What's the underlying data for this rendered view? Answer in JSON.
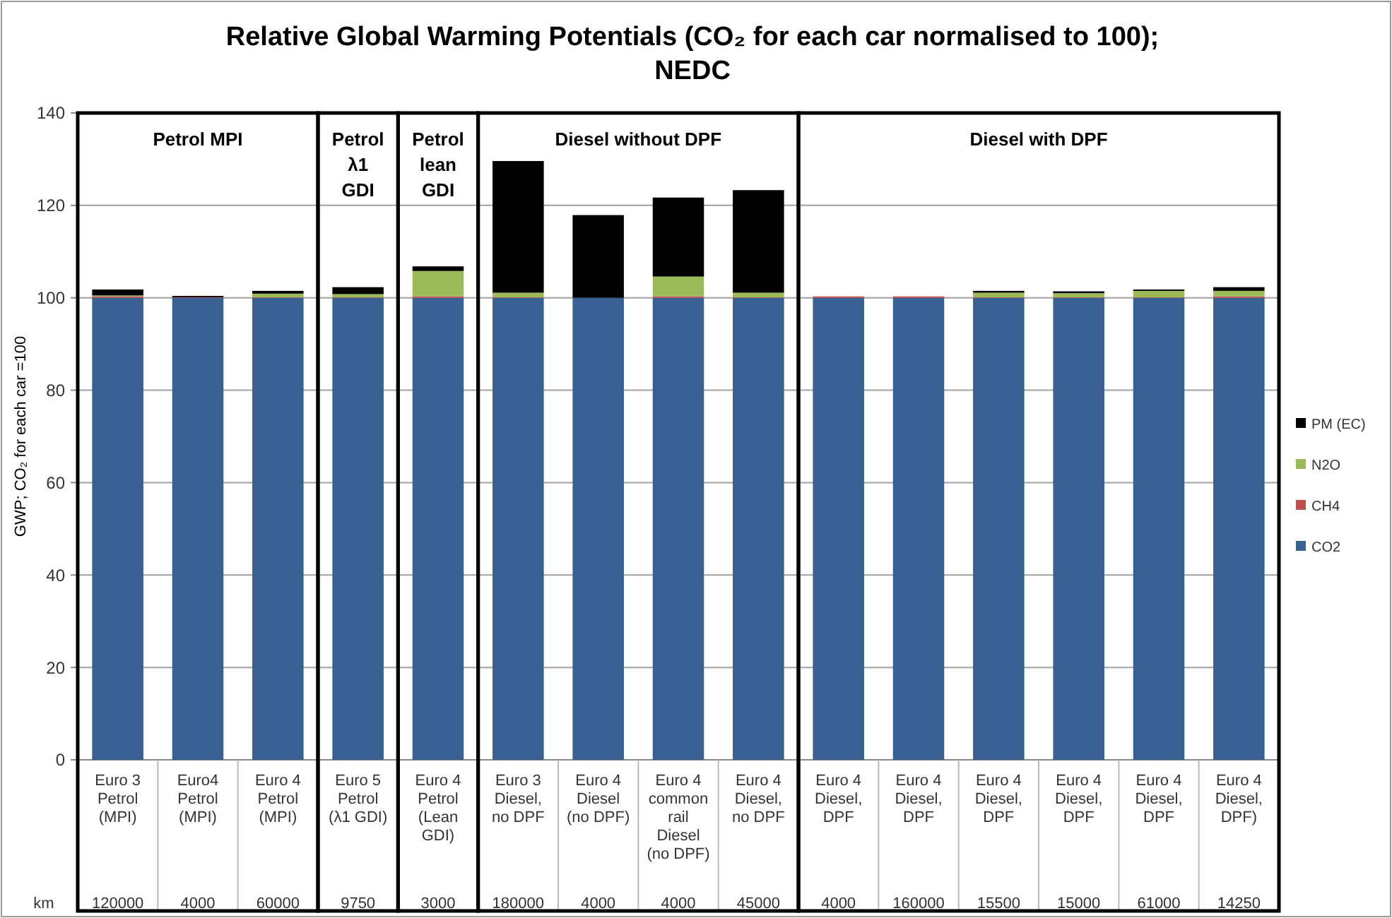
{
  "chart_data": [
    {
      "type": "bar",
      "title": "Relative Global Warming Potentials (CO₂ for each car normalised to 100);\nNEDC",
      "subtitle": "Petrol MPI",
      "ylabel": "GWP; CO₂ for each car =100",
      "categories": [
        "Euro 3 Petrol (MPI)",
        "Euro4 Petrol (MPI)",
        "Euro 4 Petrol (MPI)"
      ],
      "stacked": true,
      "series": [
        {
          "color": "#386092",
          "values": [
            100,
            100,
            100
          ]
        },
        {
          "color": "#c0504d",
          "values": [
            0.3,
            0.1,
            0.1
          ]
        },
        {
          "color": "#9bbb59",
          "values": [
            0.2,
            0,
            0.8
          ]
        },
        {
          "color": "#000000",
          "values": [
            1.3,
            0.3,
            0.6
          ]
        }
      ],
      "ylim": [
        0,
        140
      ],
      "yticks": [
        0,
        20,
        40,
        60,
        80,
        100,
        120,
        140
      ],
      "grid": "y",
      "annotations": [
        "km",
        "120000",
        "4000",
        "60000"
      ]
    },
    {
      "type": "bar",
      "subtitle": "Petrol\nλ1\nGDI",
      "categories": [
        "Euro 5 Petrol (λ1 GDI)"
      ],
      "stacked": true,
      "series": [
        {
          "color": "#386092",
          "values": [
            100
          ]
        },
        {
          "color": "#c0504d",
          "values": [
            0.1
          ]
        },
        {
          "color": "#9bbb59",
          "values": [
            0.7
          ]
        },
        {
          "color": "#000000",
          "values": [
            1.5
          ]
        }
      ],
      "ylim": [
        0,
        140
      ],
      "yticks": [
        0,
        20,
        40,
        60,
        80,
        100,
        120,
        140
      ],
      "grid": "y",
      "tick_labels": "x",
      "annotations": [
        "9750"
      ]
    },
    {
      "type": "bar",
      "subtitle": "Petrol\nlean\nGDI",
      "categories": [
        "Euro 4 Petrol (Lean GDI)"
      ],
      "stacked": true,
      "series": [
        {
          "color": "#386092",
          "values": [
            100
          ]
        },
        {
          "color": "#c0504d",
          "values": [
            0.3
          ]
        },
        {
          "color": "#9bbb59",
          "values": [
            5.5
          ]
        },
        {
          "color": "#000000",
          "values": [
            1.0
          ]
        }
      ],
      "ylim": [
        0,
        140
      ],
      "yticks": [
        0,
        20,
        40,
        60,
        80,
        100,
        120,
        140
      ],
      "grid": "y",
      "tick_labels": "x",
      "annotations": [
        "3000"
      ]
    },
    {
      "type": "bar",
      "subtitle": "Diesel without DPF",
      "categories": [
        "Euro 3 Diesel, no DPF",
        "Euro 4 Diesel (no DPF)",
        "Euro 4 common rail Diesel (no DPF)",
        "Euro 4 Diesel, no DPF"
      ],
      "stacked": true,
      "series": [
        {
          "color": "#386092",
          "values": [
            100,
            100,
            100,
            100
          ]
        },
        {
          "color": "#c0504d",
          "values": [
            0.1,
            0,
            0.3,
            0.1
          ]
        },
        {
          "color": "#9bbb59",
          "values": [
            1.0,
            0,
            4.3,
            1.0
          ]
        },
        {
          "color": "#000000",
          "values": [
            28.5,
            17.9,
            17.1,
            22.2
          ]
        }
      ],
      "ylim": [
        0,
        140
      ],
      "yticks": [
        0,
        20,
        40,
        60,
        80,
        100,
        120,
        140
      ],
      "grid": "y",
      "tick_labels": "x",
      "annotations": [
        "180000",
        "4000",
        "4000",
        "45000"
      ]
    },
    {
      "type": "bar",
      "subtitle": "Diesel with DPF",
      "categories": [
        "Euro 4 Diesel, DPF",
        "Euro 4 Diesel, DPF",
        "Euro 4 Diesel, DPF",
        "Euro 4 Diesel, DPF",
        "Euro 4 Diesel, DPF",
        "Euro 4 Diesel, DPF)"
      ],
      "stacked": true,
      "series": [
        {
          "name": "CO2",
          "color": "#386092",
          "values": [
            100,
            100,
            100,
            100,
            100,
            100
          ]
        },
        {
          "name": "CH4",
          "color": "#c0504d",
          "values": [
            0.3,
            0.3,
            0.1,
            0.1,
            0.1,
            0.3
          ]
        },
        {
          "name": "N2O",
          "color": "#9bbb59",
          "values": [
            0,
            0,
            1.0,
            0.9,
            1.4,
            1.2
          ]
        },
        {
          "name": "PM (EC)",
          "color": "#000000",
          "values": [
            0,
            0,
            0.4,
            0.4,
            0.3,
            0.8
          ]
        }
      ],
      "ylim": [
        0,
        140
      ],
      "yticks": [
        0,
        20,
        40,
        60,
        80,
        100,
        120,
        140
      ],
      "grid": "y",
      "tick_labels": "x",
      "legend": "right",
      "annotations": [
        "4000",
        "160000",
        "15500",
        "15000",
        "61000",
        "14250"
      ]
    }
  ]
}
